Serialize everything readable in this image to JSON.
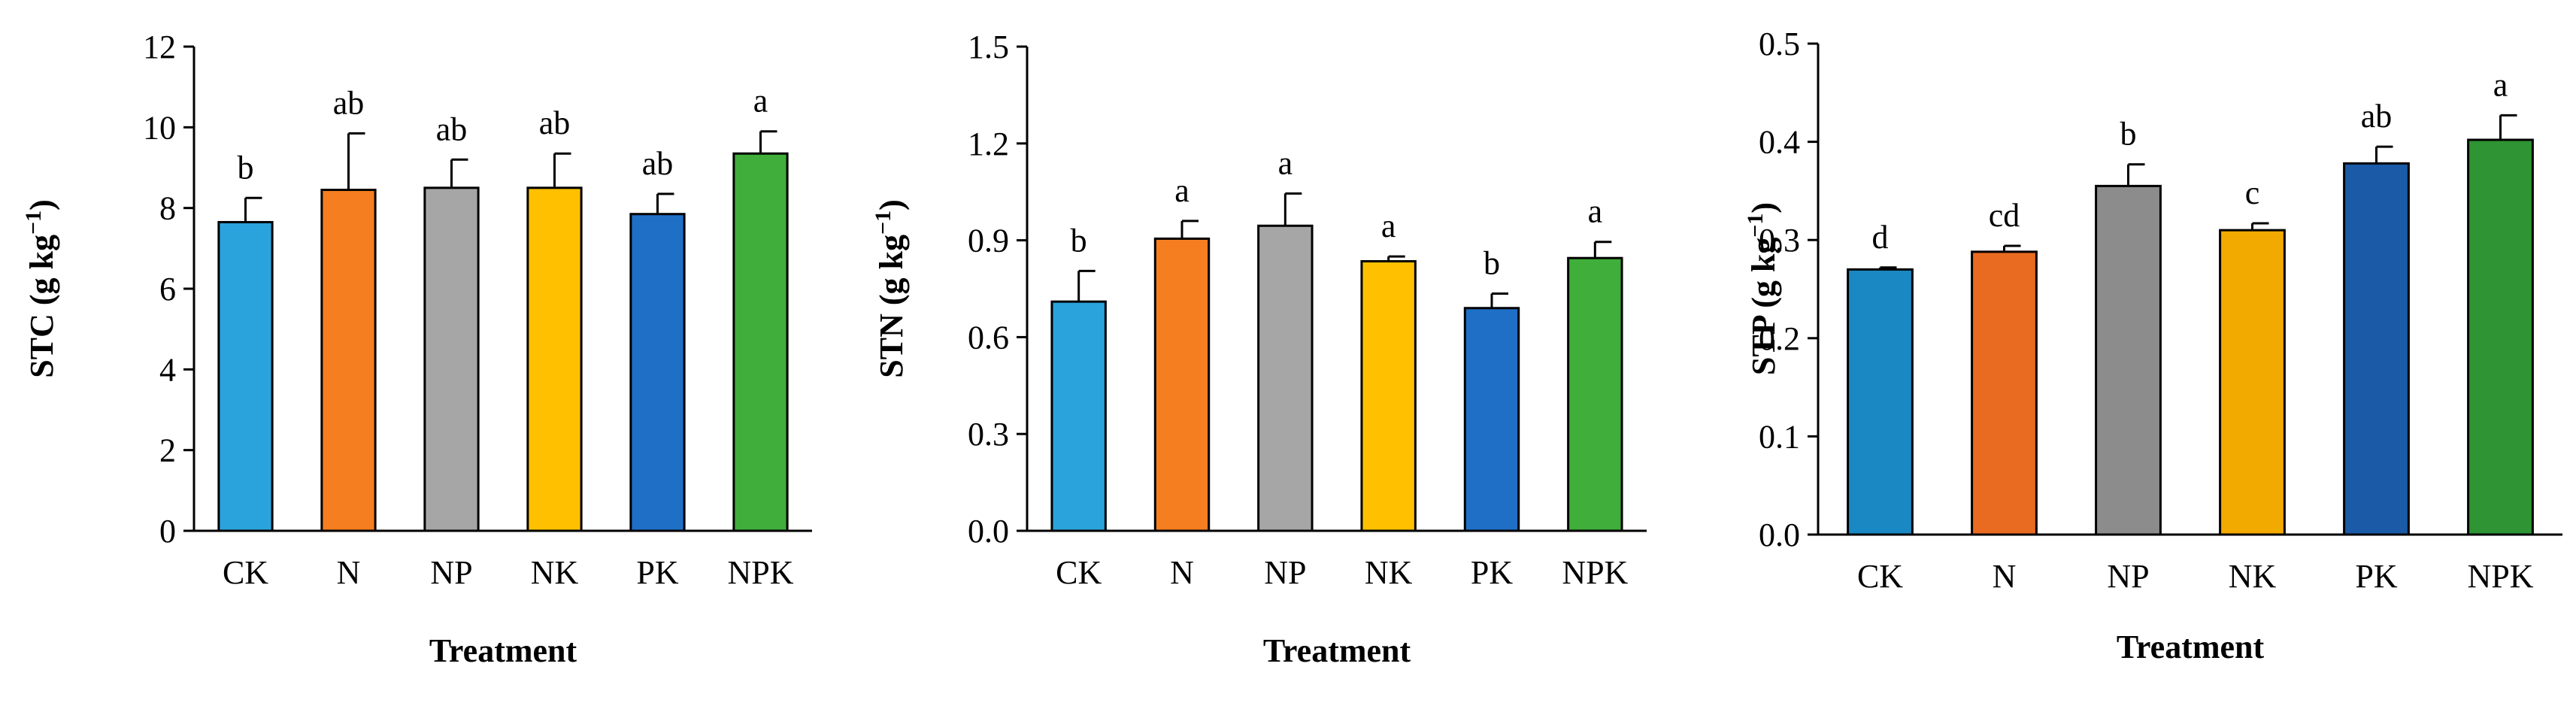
{
  "chart_data": [
    {
      "type": "bar",
      "title": "",
      "xlabel": "Treatment",
      "ylabel": "STC (g kg",
      "ylabel_sup": "−1",
      "ylabel_close": ")",
      "categories": [
        "CK",
        "N",
        "NP",
        "NK",
        "PK",
        "NPK"
      ],
      "values": [
        7.65,
        8.45,
        8.5,
        8.5,
        7.85,
        9.35
      ],
      "errors": [
        0.6,
        1.4,
        0.7,
        0.85,
        0.5,
        0.55
      ],
      "letters": [
        "b",
        "ab",
        "ab",
        "ab",
        "ab",
        "a"
      ],
      "ylim": [
        0,
        12
      ],
      "yticks": [
        0,
        2,
        4,
        6,
        8,
        10,
        12
      ],
      "ytick_labels": [
        "0",
        "2",
        "4",
        "6",
        "8",
        "10",
        "12"
      ],
      "colors": [
        "#2aa3dc",
        "#f57e20",
        "#a6a6a6",
        "#ffc000",
        "#1f6fc6",
        "#3fae3a"
      ]
    },
    {
      "type": "bar",
      "title": "",
      "xlabel": "Treatment",
      "ylabel": "STN (g kg",
      "ylabel_sup": "−1",
      "ylabel_close": ")",
      "categories": [
        "CK",
        "N",
        "NP",
        "NK",
        "PK",
        "NPK"
      ],
      "values": [
        0.71,
        0.905,
        0.945,
        0.835,
        0.69,
        0.845
      ],
      "errors": [
        0.095,
        0.055,
        0.1,
        0.015,
        0.045,
        0.05
      ],
      "letters": [
        "b",
        "a",
        "a",
        "a",
        "b",
        "a"
      ],
      "ylim": [
        0,
        1.5
      ],
      "yticks": [
        0,
        0.3,
        0.6,
        0.9,
        1.2,
        1.5
      ],
      "ytick_labels": [
        "0.0",
        "0.3",
        "0.6",
        "0.9",
        "1.2",
        "1.5"
      ],
      "colors": [
        "#2aa3dc",
        "#f57e20",
        "#a6a6a6",
        "#ffc000",
        "#1f6fc6",
        "#3fae3a"
      ]
    },
    {
      "type": "bar",
      "title": "",
      "xlabel": "Treatment",
      "ylabel": "STP (g kg",
      "ylabel_sup": "−1",
      "ylabel_close": ")",
      "categories": [
        "CK",
        "N",
        "NP",
        "NK",
        "PK",
        "NPK"
      ],
      "values": [
        0.27,
        0.288,
        0.355,
        0.31,
        0.378,
        0.402
      ],
      "errors": [
        0.002,
        0.006,
        0.022,
        0.007,
        0.017,
        0.025
      ],
      "letters": [
        "d",
        "cd",
        "b",
        "c",
        "ab",
        "a"
      ],
      "ylim": [
        0,
        0.5
      ],
      "yticks": [
        0,
        0.1,
        0.2,
        0.3,
        0.4,
        0.5
      ],
      "ytick_labels": [
        "0.0",
        "0.1",
        "0.2",
        "0.3",
        "0.4",
        "0.5"
      ],
      "colors": [
        "#1a88c2",
        "#e96b22",
        "#8c8c8c",
        "#f2a900",
        "#1b5aa6",
        "#2e9434"
      ]
    }
  ]
}
